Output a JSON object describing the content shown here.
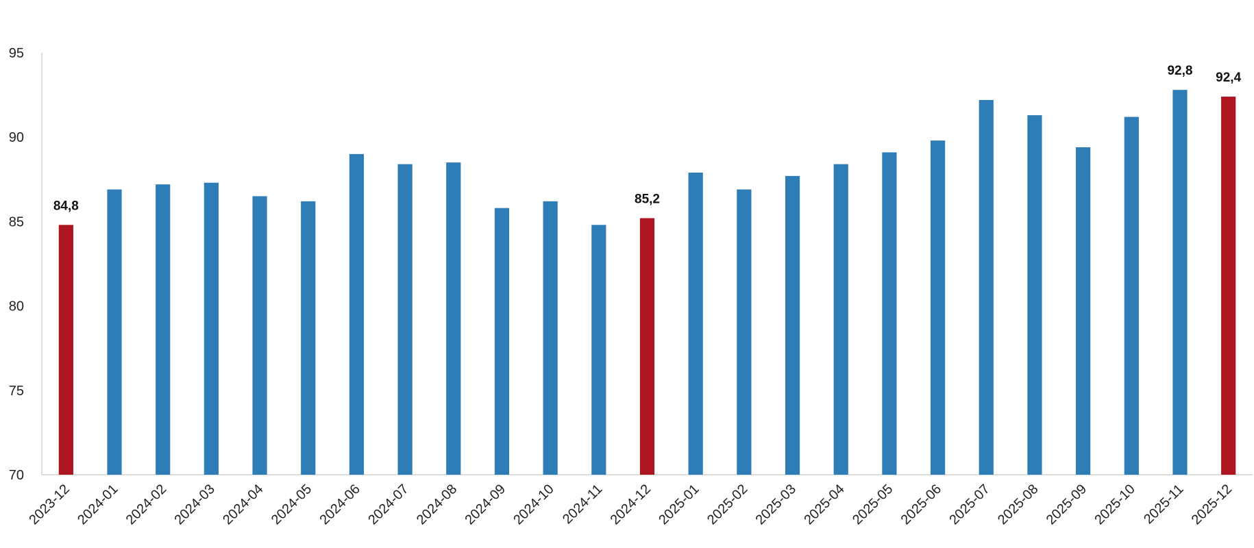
{
  "chart_data": {
    "type": "bar",
    "categories": [
      "2023-12",
      "2024-01",
      "2024-02",
      "2024-03",
      "2024-04",
      "2024-05",
      "2024-06",
      "2024-07",
      "2024-08",
      "2024-09",
      "2024-10",
      "2024-11",
      "2024-12",
      "2025-01",
      "2025-02",
      "2025-03",
      "2025-04",
      "2025-05",
      "2025-06",
      "2025-07",
      "2025-08",
      "2025-09",
      "2025-10",
      "2025-11",
      "2025-12"
    ],
    "values": [
      84.8,
      86.9,
      87.2,
      87.3,
      86.5,
      86.2,
      89.0,
      88.4,
      88.5,
      85.8,
      86.2,
      84.8,
      85.2,
      87.9,
      86.9,
      87.7,
      88.4,
      89.1,
      89.8,
      92.2,
      91.3,
      89.4,
      91.2,
      92.8,
      92.4
    ],
    "value_labels": [
      "84,8",
      null,
      null,
      null,
      null,
      null,
      null,
      null,
      null,
      null,
      null,
      null,
      "85,2",
      null,
      null,
      null,
      null,
      null,
      null,
      null,
      null,
      null,
      null,
      "92,8",
      "92,4"
    ],
    "colors": [
      "#ad1520",
      "#2f7db7",
      "#2f7db7",
      "#2f7db7",
      "#2f7db7",
      "#2f7db7",
      "#2f7db7",
      "#2f7db7",
      "#2f7db7",
      "#2f7db7",
      "#2f7db7",
      "#2f7db7",
      "#ad1520",
      "#2f7db7",
      "#2f7db7",
      "#2f7db7",
      "#2f7db7",
      "#2f7db7",
      "#2f7db7",
      "#2f7db7",
      "#2f7db7",
      "#2f7db7",
      "#2f7db7",
      "#2f7db7",
      "#ad1520"
    ],
    "ylim": [
      70,
      95
    ],
    "yticks": [
      70,
      75,
      80,
      85,
      90,
      95
    ],
    "grid": false
  }
}
